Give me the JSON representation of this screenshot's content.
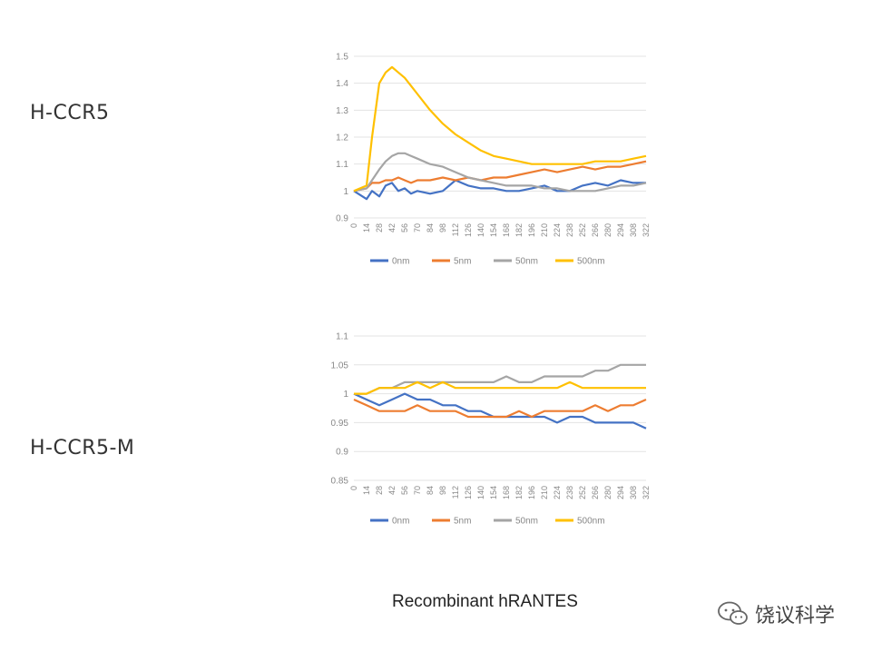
{
  "labels": {
    "top": "H-CCR5",
    "bottom": "H-CCR5-M"
  },
  "caption": "Recombinant hRANTES",
  "watermark": "饶议科学",
  "chart_data": [
    {
      "type": "line",
      "title": "",
      "xlabel": "",
      "ylabel": "",
      "ylim": [
        0.9,
        1.5
      ],
      "yticks": [
        0.9,
        1,
        1.1,
        1.2,
        1.3,
        1.4,
        1.5
      ],
      "ytick_labels": [
        "0.9",
        "1",
        "1.1",
        "1.2",
        "1.3",
        "1.4",
        "1.5"
      ],
      "xlim": [
        0,
        322
      ],
      "xticks": [
        0,
        14,
        28,
        42,
        56,
        70,
        84,
        98,
        112,
        126,
        140,
        154,
        168,
        182,
        196,
        210,
        224,
        238,
        252,
        266,
        280,
        294,
        308,
        322
      ],
      "grid": true,
      "legend": "bottom",
      "series": [
        {
          "name": "0nm",
          "color": "#4472c4",
          "x": [
            0,
            14,
            20,
            28,
            35,
            42,
            49,
            56,
            63,
            70,
            84,
            98,
            112,
            126,
            140,
            154,
            168,
            182,
            196,
            210,
            224,
            238,
            252,
            266,
            280,
            294,
            308,
            322
          ],
          "y": [
            1.0,
            0.97,
            1.0,
            0.98,
            1.02,
            1.03,
            1.0,
            1.01,
            0.99,
            1.0,
            0.99,
            1.0,
            1.04,
            1.02,
            1.01,
            1.01,
            1.0,
            1.0,
            1.01,
            1.02,
            1.0,
            1.0,
            1.02,
            1.03,
            1.02,
            1.04,
            1.03,
            1.03
          ]
        },
        {
          "name": "5nm",
          "color": "#ed7d31",
          "x": [
            0,
            14,
            20,
            28,
            35,
            42,
            49,
            56,
            63,
            70,
            84,
            98,
            112,
            126,
            140,
            154,
            168,
            182,
            196,
            210,
            224,
            238,
            252,
            266,
            280,
            294,
            308,
            322
          ],
          "y": [
            1.0,
            1.01,
            1.03,
            1.03,
            1.04,
            1.04,
            1.05,
            1.04,
            1.03,
            1.04,
            1.04,
            1.05,
            1.04,
            1.05,
            1.04,
            1.05,
            1.05,
            1.06,
            1.07,
            1.08,
            1.07,
            1.08,
            1.09,
            1.08,
            1.09,
            1.09,
            1.1,
            1.11
          ]
        },
        {
          "name": "50nm",
          "color": "#a5a5a5",
          "x": [
            0,
            14,
            20,
            28,
            35,
            42,
            49,
            56,
            63,
            70,
            84,
            98,
            112,
            126,
            140,
            154,
            168,
            182,
            196,
            210,
            224,
            238,
            252,
            266,
            280,
            294,
            308,
            322
          ],
          "y": [
            1.0,
            1.01,
            1.04,
            1.08,
            1.11,
            1.13,
            1.14,
            1.14,
            1.13,
            1.12,
            1.1,
            1.09,
            1.07,
            1.05,
            1.04,
            1.03,
            1.02,
            1.02,
            1.02,
            1.01,
            1.01,
            1.0,
            1.0,
            1.0,
            1.01,
            1.02,
            1.02,
            1.03
          ]
        },
        {
          "name": "500nm",
          "color": "#ffc000",
          "x": [
            0,
            14,
            20,
            28,
            35,
            42,
            49,
            56,
            63,
            70,
            84,
            98,
            112,
            126,
            140,
            154,
            168,
            182,
            196,
            210,
            224,
            238,
            252,
            266,
            280,
            294,
            308,
            322
          ],
          "y": [
            1.0,
            1.02,
            1.2,
            1.4,
            1.44,
            1.46,
            1.44,
            1.42,
            1.39,
            1.36,
            1.3,
            1.25,
            1.21,
            1.18,
            1.15,
            1.13,
            1.12,
            1.11,
            1.1,
            1.1,
            1.1,
            1.1,
            1.1,
            1.11,
            1.11,
            1.11,
            1.12,
            1.13
          ]
        }
      ]
    },
    {
      "type": "line",
      "title": "",
      "xlabel": "",
      "ylabel": "",
      "ylim": [
        0.85,
        1.1
      ],
      "yticks": [
        0.85,
        0.9,
        0.95,
        1,
        1.05,
        1.1
      ],
      "ytick_labels": [
        "0.85",
        "0.9",
        "0.95",
        "1",
        "1.05",
        "1.1"
      ],
      "xlim": [
        0,
        322
      ],
      "xticks": [
        0,
        14,
        28,
        42,
        56,
        70,
        84,
        98,
        112,
        126,
        140,
        154,
        168,
        182,
        196,
        210,
        224,
        238,
        252,
        266,
        280,
        294,
        308,
        322
      ],
      "grid": true,
      "legend": "bottom",
      "series": [
        {
          "name": "0nm",
          "color": "#4472c4",
          "x": [
            0,
            14,
            28,
            42,
            56,
            70,
            84,
            98,
            112,
            126,
            140,
            154,
            168,
            182,
            196,
            210,
            224,
            238,
            252,
            266,
            280,
            294,
            308,
            322
          ],
          "y": [
            1.0,
            0.99,
            0.98,
            0.99,
            1.0,
            0.99,
            0.99,
            0.98,
            0.98,
            0.97,
            0.97,
            0.96,
            0.96,
            0.96,
            0.96,
            0.96,
            0.95,
            0.96,
            0.96,
            0.95,
            0.95,
            0.95,
            0.95,
            0.94
          ]
        },
        {
          "name": "5nm",
          "color": "#ed7d31",
          "x": [
            0,
            14,
            28,
            42,
            56,
            70,
            84,
            98,
            112,
            126,
            140,
            154,
            168,
            182,
            196,
            210,
            224,
            238,
            252,
            266,
            280,
            294,
            308,
            322
          ],
          "y": [
            0.99,
            0.98,
            0.97,
            0.97,
            0.97,
            0.98,
            0.97,
            0.97,
            0.97,
            0.96,
            0.96,
            0.96,
            0.96,
            0.97,
            0.96,
            0.97,
            0.97,
            0.97,
            0.97,
            0.98,
            0.97,
            0.98,
            0.98,
            0.99
          ]
        },
        {
          "name": "50nm",
          "color": "#a5a5a5",
          "x": [
            0,
            14,
            28,
            42,
            56,
            70,
            84,
            98,
            112,
            126,
            140,
            154,
            168,
            182,
            196,
            210,
            224,
            238,
            252,
            266,
            280,
            294,
            308,
            322
          ],
          "y": [
            1.0,
            1.0,
            1.01,
            1.01,
            1.02,
            1.02,
            1.02,
            1.02,
            1.02,
            1.02,
            1.02,
            1.02,
            1.03,
            1.02,
            1.02,
            1.03,
            1.03,
            1.03,
            1.03,
            1.04,
            1.04,
            1.05,
            1.05,
            1.05
          ]
        },
        {
          "name": "500nm",
          "color": "#ffc000",
          "x": [
            0,
            14,
            28,
            42,
            56,
            70,
            84,
            98,
            112,
            126,
            140,
            154,
            168,
            182,
            196,
            210,
            224,
            238,
            252,
            266,
            280,
            294,
            308,
            322
          ],
          "y": [
            1.0,
            1.0,
            1.01,
            1.01,
            1.01,
            1.02,
            1.01,
            1.02,
            1.01,
            1.01,
            1.01,
            1.01,
            1.01,
            1.01,
            1.01,
            1.01,
            1.01,
            1.02,
            1.01,
            1.01,
            1.01,
            1.01,
            1.01,
            1.01
          ]
        }
      ]
    }
  ]
}
